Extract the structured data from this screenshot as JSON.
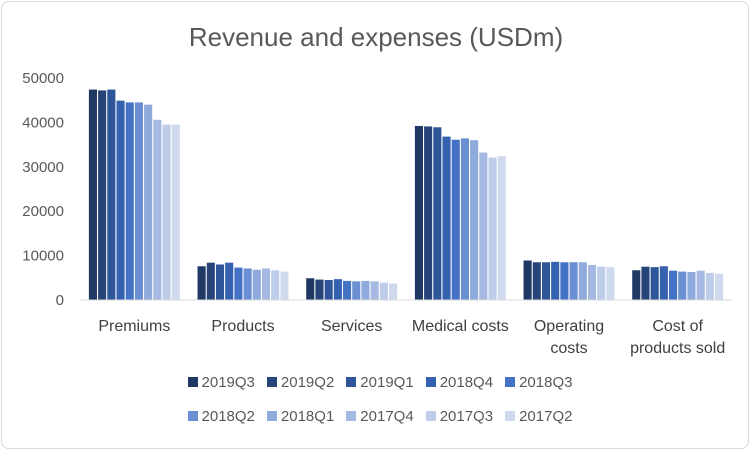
{
  "chart_data": {
    "type": "bar",
    "title": "Revenue and expenses (USDm)",
    "xlabel": "",
    "ylabel": "",
    "ylim": [
      0,
      50000
    ],
    "yticks": [
      "0",
      "10000",
      "20000",
      "30000",
      "40000",
      "50000"
    ],
    "grid": false,
    "legend_position": "bottom",
    "categories": [
      [
        "Premiums"
      ],
      [
        "Products"
      ],
      [
        "Services"
      ],
      [
        "Medical costs"
      ],
      [
        "Operating",
        "costs"
      ],
      [
        "Cost of",
        "products sold"
      ]
    ],
    "series": [
      {
        "name": "2019Q3",
        "color": "#203864",
        "values": [
          47400,
          7600,
          4900,
          39200,
          8900,
          6700
        ]
      },
      {
        "name": "2019Q2",
        "color": "#264478",
        "values": [
          47200,
          8400,
          4600,
          39100,
          8500,
          7500
        ]
      },
      {
        "name": "2019Q1",
        "color": "#2E5597",
        "values": [
          47400,
          8000,
          4500,
          38900,
          8500,
          7400
        ]
      },
      {
        "name": "2018Q4",
        "color": "#3462B0",
        "values": [
          44900,
          8400,
          4700,
          36800,
          8600,
          7600
        ]
      },
      {
        "name": "2018Q3",
        "color": "#4472C4",
        "values": [
          44500,
          7300,
          4300,
          36100,
          8500,
          6600
        ]
      },
      {
        "name": "2018Q2",
        "color": "#6A8FD2",
        "values": [
          44500,
          7100,
          4200,
          36400,
          8500,
          6400
        ]
      },
      {
        "name": "2018Q1",
        "color": "#8FAADC",
        "values": [
          44000,
          6800,
          4300,
          36000,
          8500,
          6300
        ]
      },
      {
        "name": "2017Q4",
        "color": "#A5B9E2",
        "values": [
          40600,
          7100,
          4200,
          33200,
          7900,
          6600
        ]
      },
      {
        "name": "2017Q3",
        "color": "#BECDEA",
        "values": [
          39500,
          6700,
          3900,
          32100,
          7500,
          6100
        ]
      },
      {
        "name": "2017Q2",
        "color": "#CFDAEF",
        "values": [
          39500,
          6400,
          3700,
          32400,
          7400,
          5900
        ]
      }
    ]
  }
}
